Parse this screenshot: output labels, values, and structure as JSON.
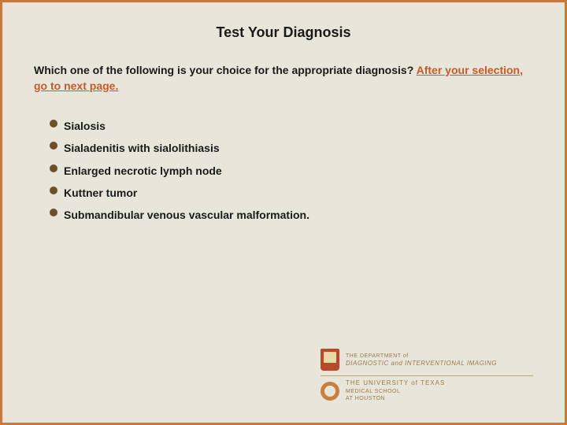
{
  "colors": {
    "background": "#e8e5da",
    "border": "#c87a3a",
    "text": "#1a1a1a",
    "highlight": "#c65a2a",
    "bullet": "#6b5028",
    "logo_text": "#9a7a4a"
  },
  "title": "Test Your Diagnosis",
  "question_plain": "Which one of the following is your choice for the appropriate diagnosis? ",
  "question_highlight": "After your selection, go to next page.",
  "options": [
    "Sialosis",
    "Sialadenitis with sialolithiasis",
    "Enlarged necrotic lymph node",
    "Kuttner tumor",
    "Submandibular venous vascular malformation."
  ],
  "logo1": {
    "line1": "THE DEPARTMENT of",
    "line2": "DIAGNOSTIC and INTERVENTIONAL IMAGING"
  },
  "logo2": {
    "line1": "THE UNIVERSITY of TEXAS",
    "line2": "MEDICAL SCHOOL",
    "line3": "AT HOUSTON"
  }
}
